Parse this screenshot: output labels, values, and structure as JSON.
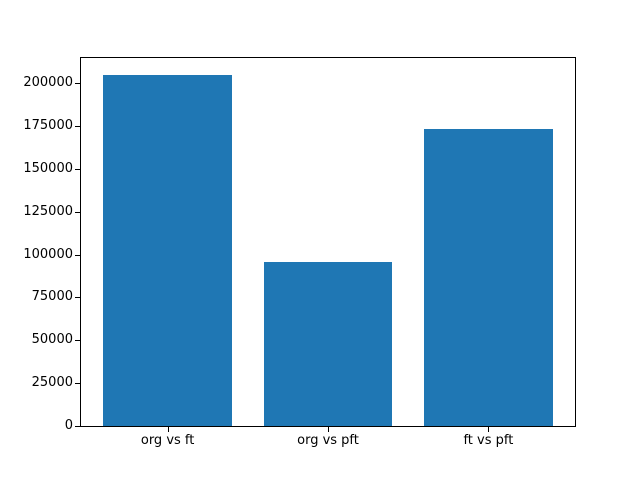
{
  "figure": {
    "background": "#ffffff"
  },
  "chart_data": {
    "type": "bar",
    "categories": [
      "org vs ft",
      "org vs pft",
      "ft vs pft"
    ],
    "values": [
      204800,
      95600,
      173100
    ],
    "title": "",
    "xlabel": "",
    "ylabel": "",
    "ylim": [
      0,
      214600
    ],
    "yticks": [
      0,
      25000,
      50000,
      75000,
      100000,
      125000,
      150000,
      175000,
      200000
    ],
    "bar_color": "#1f77b4",
    "bar_width_fraction": 0.8,
    "axis_color": "#000000",
    "tick_label_color": "#000000",
    "grid": false,
    "legend": null
  }
}
